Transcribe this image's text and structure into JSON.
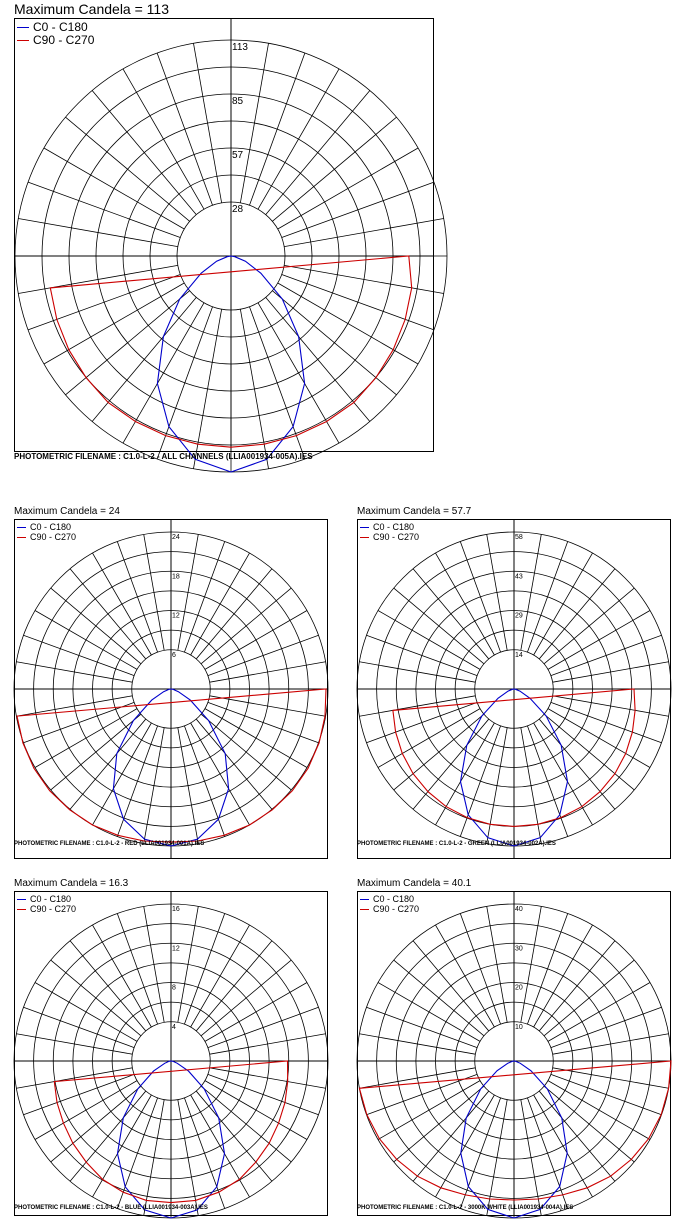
{
  "chart_data": [
    {
      "type": "polar",
      "title": "Maximum Candela = 113",
      "legend_position": "top-left",
      "series": [
        {
          "name": "C0 - C180",
          "color": "#0000cc",
          "values": [
            113,
            108,
            95,
            77,
            55,
            35,
            18,
            8,
            2,
            0
          ]
        },
        {
          "name": "C90 - C270",
          "color": "#cc0000",
          "values": [
            100,
            100,
            100,
            100,
            100,
            99,
            98,
            97,
            96,
            93
          ]
        }
      ],
      "angle_step_deg": 10,
      "r_max": 113,
      "tick_labels": [
        "113",
        "85",
        "57",
        "28"
      ],
      "footer": "PHOTOMETRIC FILENAME : C1.0-L-2 - ALL CHANNELS (LLIA001934-005A).IES"
    },
    {
      "type": "polar",
      "title": "Maximum Candela = 24",
      "legend_position": "top-left",
      "series": [
        {
          "name": "C0 - C180",
          "color": "#0000cc",
          "values": [
            24,
            23.3,
            21.2,
            17.6,
            12.9,
            7.5,
            3.4,
            1.2,
            0.3,
            0
          ]
        },
        {
          "name": "C90 - C270",
          "color": "#cc0000",
          "values": [
            23.4,
            23.6,
            23.8,
            24,
            24.1,
            24.2,
            24.2,
            24.1,
            23.9,
            23.7
          ]
        }
      ],
      "angle_step_deg": 10,
      "r_max": 24,
      "tick_labels": [
        "24",
        "18",
        "12",
        "6"
      ],
      "footer": "PHOTOMETRIC FILENAME : C1.0-L-2 - RED (LLIA001934-001A).IES"
    },
    {
      "type": "polar",
      "title": "Maximum Candela = 57.7",
      "legend_position": "top-left",
      "series": [
        {
          "name": "C0 - C180",
          "color": "#0000cc",
          "values": [
            57.7,
            55.5,
            49.2,
            39.3,
            27,
            15.4,
            6.8,
            2.3,
            0.5,
            0
          ]
        },
        {
          "name": "C90 - C270",
          "color": "#cc0000",
          "values": [
            50.5,
            50.5,
            50.3,
            49.9,
            49.2,
            48.4,
            47.4,
            46.3,
            45.2,
            44.1
          ]
        }
      ],
      "angle_step_deg": 10,
      "r_max": 57.7,
      "tick_labels": [
        "58",
        "43",
        "29",
        "14"
      ],
      "footer": "PHOTOMETRIC FILENAME : C1.0-L-2 - GREEN (LLIA001934-002A).IES"
    },
    {
      "type": "polar",
      "title": "Maximum Candela = 16.3",
      "legend_position": "top-left",
      "series": [
        {
          "name": "C0 - C180",
          "color": "#0000cc",
          "values": [
            16.3,
            15.7,
            13.9,
            11.1,
            7.7,
            4.5,
            2.1,
            0.7,
            0.2,
            0
          ]
        },
        {
          "name": "C90 - C270",
          "color": "#cc0000",
          "values": [
            14.7,
            14.7,
            14.5,
            14.2,
            13.7,
            13.3,
            12.9,
            12.6,
            12.3,
            12.1
          ]
        }
      ],
      "angle_step_deg": 10,
      "r_max": 16.3,
      "tick_labels": [
        "16",
        "12",
        "8",
        "4"
      ],
      "footer": "PHOTOMETRIC FILENAME : C1.0-L-2 - BLUE (LLIA001934-003A).IES"
    },
    {
      "type": "polar",
      "title": "Maximum Candela = 40.1",
      "legend_position": "top-left",
      "series": [
        {
          "name": "C0 - C180",
          "color": "#0000cc",
          "values": [
            40.1,
            38.5,
            34.1,
            27.2,
            19,
            11.1,
            5,
            1.7,
            0.4,
            0
          ]
        },
        {
          "name": "C90 - C270",
          "color": "#cc0000",
          "values": [
            35.5,
            35.8,
            36.4,
            37.4,
            38.4,
            39.1,
            39.7,
            40,
            40.1,
            40.1
          ]
        }
      ],
      "angle_step_deg": 10,
      "r_max": 40.1,
      "tick_labels": [
        "40",
        "30",
        "20",
        "10"
      ],
      "footer": "PHOTOMETRIC FILENAME : C1.0-L-2 - 3000K WHITE (LLIA001934-004A).IES"
    }
  ]
}
